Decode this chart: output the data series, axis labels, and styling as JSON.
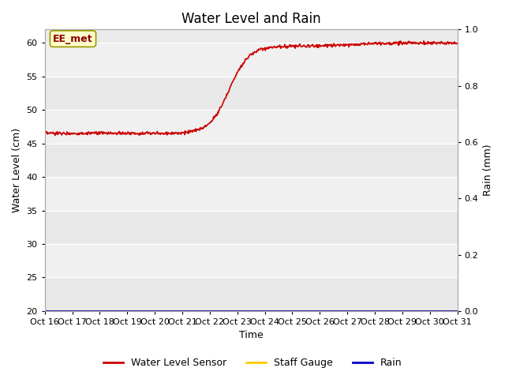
{
  "title": "Water Level and Rain",
  "xlabel": "Time",
  "ylabel_left": "Water Level (cm)",
  "ylabel_right": "Rain (mm)",
  "annotation_text": "EE_met",
  "ylim_left": [
    20,
    62
  ],
  "ylim_right": [
    0.0,
    1.0
  ],
  "yticks_left": [
    20,
    25,
    30,
    35,
    40,
    45,
    50,
    55,
    60
  ],
  "yticks_right": [
    0.0,
    0.2,
    0.4,
    0.6,
    0.8,
    1.0
  ],
  "xtick_labels": [
    "Oct 16",
    "Oct 17",
    "Oct 18",
    "Oct 19",
    "Oct 20",
    "Oct 21",
    "Oct 22",
    "Oct 23",
    "Oct 24",
    "Oct 25",
    "Oct 26",
    "Oct 27",
    "Oct 28",
    "Oct 29",
    "Oct 30",
    "Oct 31"
  ],
  "water_level_color": "#cc0000",
  "staff_gauge_color": "#ffcc00",
  "rain_color": "#0000cc",
  "background_color": "#ebebeb",
  "band_color_light": "#f5f5f5",
  "band_color_dark": "#e0e0e0",
  "title_fontsize": 12,
  "axis_label_fontsize": 9,
  "tick_fontsize": 8,
  "legend_fontsize": 9,
  "water_level_seed": 0,
  "noise_scale": 0.12
}
